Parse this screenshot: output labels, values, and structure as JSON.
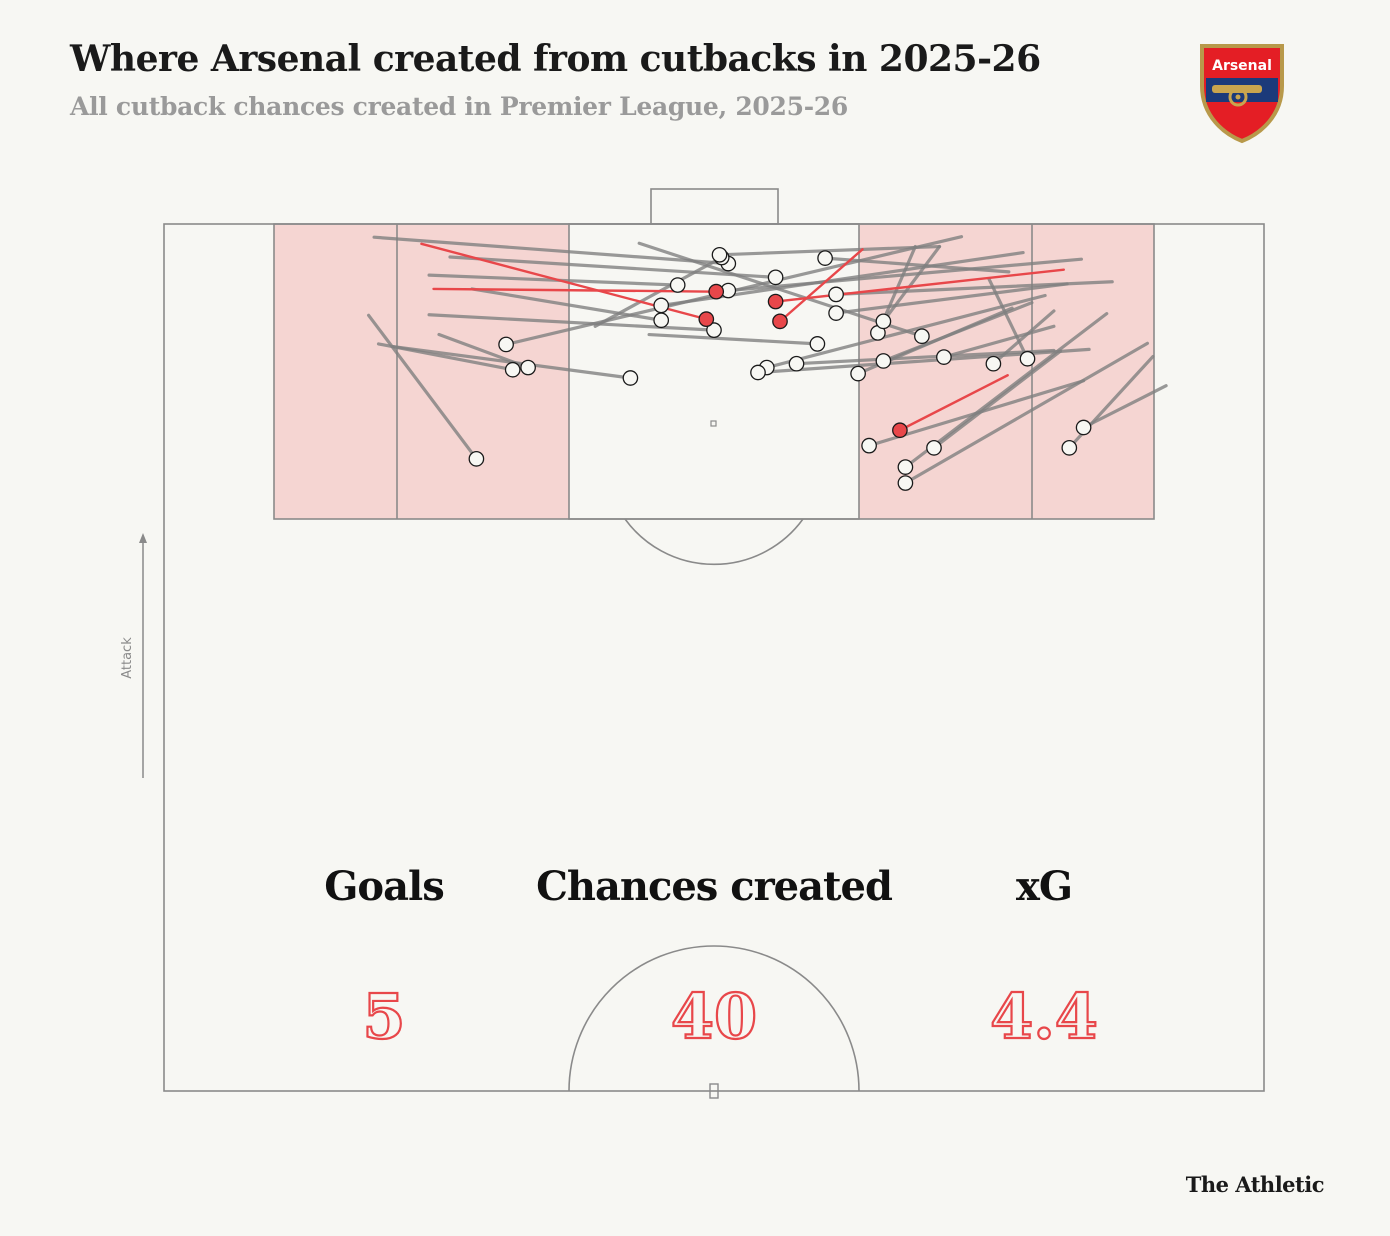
{
  "header": {
    "title": "Where Arsenal created from cutbacks in 2025-26",
    "subtitle": "All cutback chances created in Premier League, 2025-26"
  },
  "crest": {
    "label": "Arsenal",
    "icon": "arsenal-crest-icon"
  },
  "brand": "The Athletic",
  "attack_label": "Attack",
  "colors": {
    "background": "#f7f7f3",
    "zone": "#f5d5d2",
    "goal_line": "#e8474a",
    "chance_line": "#808080",
    "pitch_line": "#8a8a8a"
  },
  "stats": [
    {
      "label": "Goals",
      "value": "5"
    },
    {
      "label": "Chances created",
      "value": "40"
    },
    {
      "label": "xG",
      "value": "4.4"
    }
  ],
  "chart_data": {
    "type": "scatter",
    "description_units": "pitch units: x 0-100 across the pitch (left to right), y 0 = attacking goal line increasing downfield",
    "series": [
      {
        "name": "Goal",
        "passes": [
          {
            "from": [
              23.4,
              3.6
            ],
            "to": [
              49.3,
              17.3
            ]
          },
          {
            "from": [
              24.5,
              11.8
            ],
            "to": [
              50.2,
              12.3
            ]
          },
          {
            "from": [
              63.5,
              4.6
            ],
            "to": [
              56.0,
              17.7
            ]
          },
          {
            "from": [
              81.8,
              8.3
            ],
            "to": [
              55.6,
              14.1
            ]
          },
          {
            "from": [
              76.7,
              27.5
            ],
            "to": [
              66.9,
              37.5
            ]
          }
        ]
      },
      {
        "name": "Chance",
        "passes": [
          {
            "from": [
              19.1,
              2.4
            ],
            "to": [
              51.3,
              7.2
            ]
          },
          {
            "from": [
              24.1,
              9.3
            ],
            "to": [
              46.7,
              11.1
            ]
          },
          {
            "from": [
              26.0,
              6.0
            ],
            "to": [
              55.6,
              9.7
            ]
          },
          {
            "from": [
              28.0,
              11.8
            ],
            "to": [
              45.2,
              17.5
            ]
          },
          {
            "from": [
              24.1,
              16.5
            ],
            "to": [
              50.0,
              19.3
            ]
          },
          {
            "from": [
              20.9,
              22.3
            ],
            "to": [
              42.4,
              28.0
            ]
          },
          {
            "from": [
              19.5,
              21.8
            ],
            "to": [
              31.7,
              26.5
            ]
          },
          {
            "from": [
              18.6,
              16.6
            ],
            "to": [
              28.4,
              42.7
            ]
          },
          {
            "from": [
              25.0,
              20.1
            ],
            "to": [
              33.1,
              26.1
            ]
          },
          {
            "from": [
              43.2,
              3.5
            ],
            "to": [
              68.9,
              20.4
            ]
          },
          {
            "from": [
              44.1,
              20.1
            ],
            "to": [
              59.4,
              21.8
            ]
          },
          {
            "from": [
              39.2,
              18.6
            ],
            "to": [
              50.7,
              6.1
            ]
          },
          {
            "from": [
              72.5,
              2.3
            ],
            "to": [
              31.1,
              21.9
            ]
          },
          {
            "from": [
              70.5,
              4.1
            ],
            "to": [
              50.5,
              5.6
            ]
          },
          {
            "from": [
              78.1,
              5.2
            ],
            "to": [
              45.2,
              14.8
            ]
          },
          {
            "from": [
              76.8,
              8.7
            ],
            "to": [
              60.1,
              6.2
            ]
          },
          {
            "from": [
              83.4,
              6.4
            ],
            "to": [
              51.3,
              12.1
            ]
          },
          {
            "from": [
              82.1,
              10.9
            ],
            "to": [
              61.1,
              16.2
            ]
          },
          {
            "from": [
              68.3,
              4.1
            ],
            "to": [
              64.9,
              19.8
            ]
          },
          {
            "from": [
              70.5,
              4.1
            ],
            "to": [
              65.4,
              17.7
            ]
          },
          {
            "from": [
              86.2,
              10.5
            ],
            "to": [
              61.1,
              12.8
            ]
          },
          {
            "from": [
              78.9,
              14.3
            ],
            "to": [
              65.4,
              24.9
            ]
          },
          {
            "from": [
              77.1,
              15.3
            ],
            "to": [
              63.1,
              27.2
            ]
          },
          {
            "from": [
              80.1,
              13.0
            ],
            "to": [
              54.8,
              26.1
            ]
          },
          {
            "from": [
              80.9,
              23.0
            ],
            "to": [
              57.5,
              25.4
            ]
          },
          {
            "from": [
              80.9,
              18.6
            ],
            "to": [
              70.9,
              24.2
            ]
          },
          {
            "from": [
              84.1,
              22.8
            ],
            "to": [
              54.0,
              27.0
            ]
          },
          {
            "from": [
              85.7,
              16.3
            ],
            "to": [
              67.4,
              44.2
            ]
          },
          {
            "from": [
              81.5,
              23.1
            ],
            "to": [
              70.0,
              40.7
            ]
          },
          {
            "from": [
              83.6,
              28.5
            ],
            "to": [
              64.1,
              40.3
            ]
          },
          {
            "from": [
              89.4,
              21.7
            ],
            "to": [
              67.4,
              47.1
            ]
          },
          {
            "from": [
              89.9,
              24.1
            ],
            "to": [
              82.3,
              40.7
            ]
          },
          {
            "from": [
              91.1,
              29.4
            ],
            "to": [
              83.6,
              37.0
            ]
          },
          {
            "from": [
              80.9,
              15.8
            ],
            "to": [
              75.4,
              25.4
            ]
          },
          {
            "from": [
              75.0,
              10.0
            ],
            "to": [
              78.5,
              24.5
            ]
          }
        ]
      }
    ]
  }
}
